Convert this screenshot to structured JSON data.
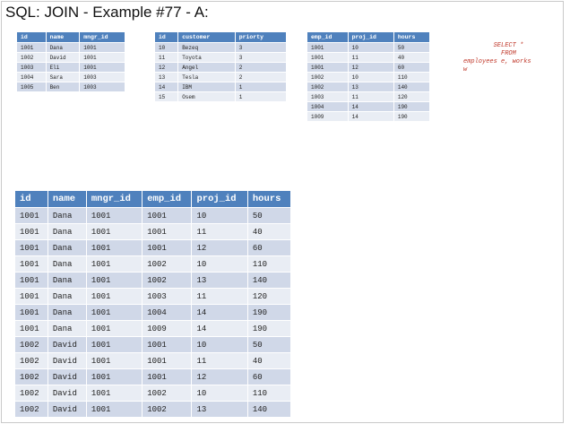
{
  "title": "SQL: JOIN - Example #77 - A:",
  "sql_text": "        SELECT *\n          FROM\nemployees e, works\nw",
  "employees": {
    "headers": [
      "id",
      "name",
      "mngr_id"
    ],
    "rows": [
      [
        "1001",
        "Dana",
        "1001"
      ],
      [
        "1002",
        "David",
        "1001"
      ],
      [
        "1003",
        "Eli",
        "1001"
      ],
      [
        "1004",
        "Sara",
        "1003"
      ],
      [
        "1005",
        "Ben",
        "1003"
      ]
    ]
  },
  "customers": {
    "headers": [
      "id",
      "customer",
      "priorty"
    ],
    "rows": [
      [
        "10",
        "Bezeq",
        "3"
      ],
      [
        "11",
        "Toyota",
        "3"
      ],
      [
        "12",
        "Angel",
        "2"
      ],
      [
        "13",
        "Tesla",
        "2"
      ],
      [
        "14",
        "IBM",
        "1"
      ],
      [
        "15",
        "Osem",
        "1"
      ]
    ]
  },
  "works": {
    "headers": [
      "emp_id",
      "proj_id",
      "hours"
    ],
    "rows": [
      [
        "1001",
        "10",
        "50"
      ],
      [
        "1001",
        "11",
        "40"
      ],
      [
        "1001",
        "12",
        "60"
      ],
      [
        "1002",
        "10",
        "110"
      ],
      [
        "1002",
        "13",
        "140"
      ],
      [
        "1003",
        "11",
        "120"
      ],
      [
        "1004",
        "14",
        "190"
      ],
      [
        "1009",
        "14",
        "190"
      ]
    ]
  },
  "result": {
    "headers": [
      "id",
      "name",
      "mngr_id",
      "emp_id",
      "proj_id",
      "hours"
    ],
    "rows": [
      [
        "1001",
        "Dana",
        "1001",
        "1001",
        "10",
        "50"
      ],
      [
        "1001",
        "Dana",
        "1001",
        "1001",
        "11",
        "40"
      ],
      [
        "1001",
        "Dana",
        "1001",
        "1001",
        "12",
        "60"
      ],
      [
        "1001",
        "Dana",
        "1001",
        "1002",
        "10",
        "110"
      ],
      [
        "1001",
        "Dana",
        "1001",
        "1002",
        "13",
        "140"
      ],
      [
        "1001",
        "Dana",
        "1001",
        "1003",
        "11",
        "120"
      ],
      [
        "1001",
        "Dana",
        "1001",
        "1004",
        "14",
        "190"
      ],
      [
        "1001",
        "Dana",
        "1001",
        "1009",
        "14",
        "190"
      ],
      [
        "1002",
        "David",
        "1001",
        "1001",
        "10",
        "50"
      ],
      [
        "1002",
        "David",
        "1001",
        "1001",
        "11",
        "40"
      ],
      [
        "1002",
        "David",
        "1001",
        "1001",
        "12",
        "60"
      ],
      [
        "1002",
        "David",
        "1001",
        "1002",
        "10",
        "110"
      ],
      [
        "1002",
        "David",
        "1001",
        "1002",
        "13",
        "140"
      ]
    ]
  }
}
